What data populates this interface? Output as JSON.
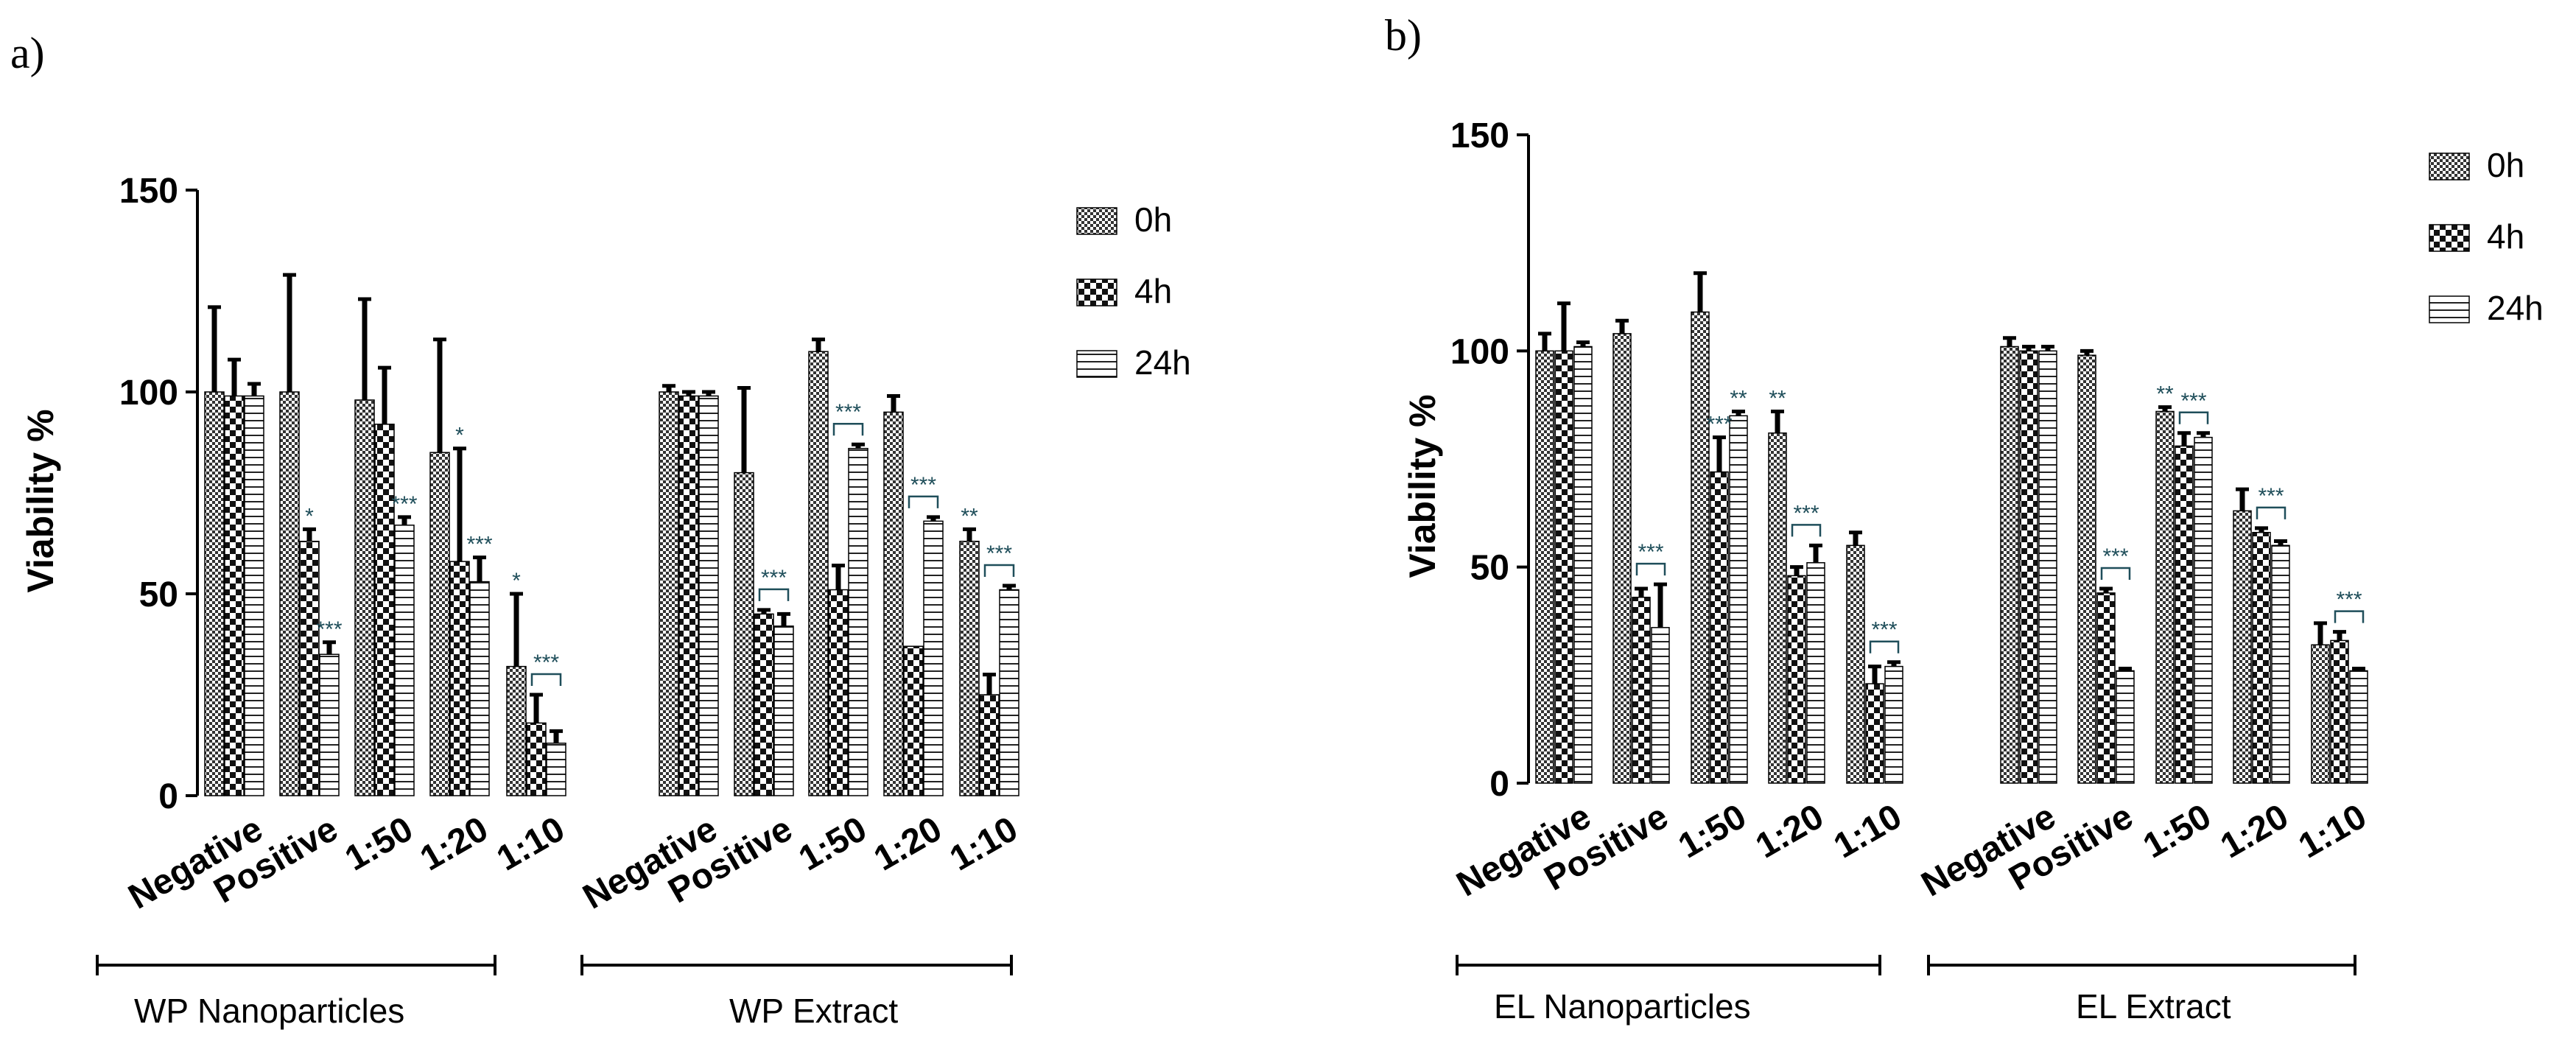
{
  "chart_data": [
    {
      "panel": "a)",
      "type": "bar",
      "ylabel": "Viability %",
      "ylim": [
        0,
        150
      ],
      "yticks": [
        "0",
        "50",
        "100",
        "150"
      ],
      "categories": [
        "Negative",
        "Positive",
        "1:50",
        "1:20",
        "1:10",
        "Negative",
        "Positive",
        "1:50",
        "1:20",
        "1:10"
      ],
      "groups": [
        "WP Nanoparticles",
        "WP Extract"
      ],
      "series": [
        {
          "name": "0h",
          "pattern": "checker",
          "values": [
            100,
            100,
            98,
            85,
            32,
            100,
            80,
            110,
            95,
            63
          ],
          "errors": [
            21,
            29,
            25,
            28,
            18,
            1.5,
            21,
            3,
            4,
            3
          ]
        },
        {
          "name": "4h",
          "pattern": "bigcheck",
          "values": [
            99,
            63,
            92,
            58,
            18,
            99,
            45,
            51,
            37,
            25
          ],
          "errors": [
            9,
            3,
            14,
            28,
            7,
            1,
            1,
            6,
            0,
            5
          ]
        },
        {
          "name": "24h",
          "pattern": "lines",
          "values": [
            99,
            35,
            67,
            53,
            13,
            99,
            42,
            86,
            68,
            51
          ],
          "errors": [
            3,
            3,
            2,
            6,
            3,
            1,
            3,
            1,
            1,
            1
          ]
        }
      ],
      "annotations": [
        {
          "category": 1,
          "series": 1,
          "text": "*"
        },
        {
          "category": 1,
          "series": 2,
          "text": "***"
        },
        {
          "category": 2,
          "series": 2,
          "text": "***"
        },
        {
          "category": 3,
          "series": 1,
          "text": "*"
        },
        {
          "category": 3,
          "series": 2,
          "text": "***"
        },
        {
          "category": 4,
          "series": 0,
          "text": "*"
        },
        {
          "category": 4,
          "series": 1,
          "to": 2,
          "text": "***",
          "bracket": true
        },
        {
          "category": 6,
          "series": 1,
          "to": 2,
          "text": "***",
          "bracket": true
        },
        {
          "category": 7,
          "series": 1,
          "to": 2,
          "text": "***",
          "bracket": true
        },
        {
          "category": 8,
          "series": 1,
          "to": 2,
          "text": "***",
          "bracket": true
        },
        {
          "category": 9,
          "series": 0,
          "text": "**"
        },
        {
          "category": 9,
          "series": 1,
          "to": 2,
          "text": "***",
          "bracket": true
        }
      ]
    },
    {
      "panel": "b)",
      "type": "bar",
      "ylabel": "Viability %",
      "ylim": [
        0,
        150
      ],
      "yticks": [
        "0",
        "50",
        "100",
        "150"
      ],
      "categories": [
        "Negative",
        "Positive",
        "1:50",
        "1:20",
        "1:10",
        "Negative",
        "Positive",
        "1:50",
        "1:20",
        "1:10"
      ],
      "groups": [
        "EL Nanoparticles",
        "EL Extract"
      ],
      "series": [
        {
          "name": "0h",
          "pattern": "checker",
          "values": [
            100,
            104,
            109,
            81,
            55,
            101,
            99,
            86,
            63,
            32
          ],
          "errors": [
            4,
            3,
            9,
            5,
            3,
            2,
            1,
            1,
            5,
            5
          ]
        },
        {
          "name": "4h",
          "pattern": "bigcheck",
          "values": [
            100,
            43,
            72,
            48,
            23,
            100,
            44,
            78,
            58,
            33
          ],
          "errors": [
            11,
            2,
            8,
            2,
            4,
            1,
            1,
            3,
            1,
            2
          ]
        },
        {
          "name": "24h",
          "pattern": "lines",
          "values": [
            101,
            36,
            85,
            51,
            27,
            100,
            26,
            80,
            55,
            26
          ],
          "errors": [
            1,
            10,
            1,
            4,
            1,
            1,
            0.5,
            1,
            1,
            0.5
          ]
        }
      ],
      "annotations": [
        {
          "category": 1,
          "series": 1,
          "to": 2,
          "text": "***",
          "bracket": true
        },
        {
          "category": 2,
          "series": 1,
          "text": "***"
        },
        {
          "category": 2,
          "series": 2,
          "text": "**"
        },
        {
          "category": 3,
          "series": 0,
          "text": "**"
        },
        {
          "category": 3,
          "series": 1,
          "to": 2,
          "text": "***",
          "bracket": true
        },
        {
          "category": 4,
          "series": 1,
          "to": 2,
          "text": "***",
          "bracket": true
        },
        {
          "category": 6,
          "series": 1,
          "to": 2,
          "text": "***",
          "bracket": true
        },
        {
          "category": 7,
          "series": 0,
          "text": "**"
        },
        {
          "category": 7,
          "series": 1,
          "to": 2,
          "text": "***",
          "bracket": true
        },
        {
          "category": 8,
          "series": 1,
          "to": 2,
          "text": "***",
          "bracket": true
        },
        {
          "category": 9,
          "series": 1,
          "to": 2,
          "text": "***",
          "bracket": true
        }
      ]
    }
  ]
}
